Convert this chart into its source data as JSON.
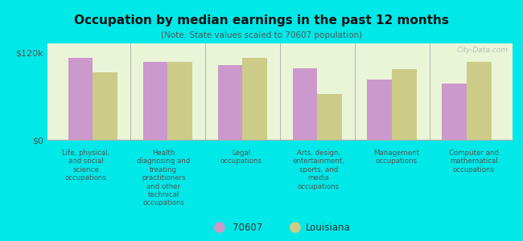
{
  "title": "Occupation by median earnings in the past 12 months",
  "subtitle": "(Note: State values scaled to 70607 population)",
  "categories": [
    "Life, physical,\nand social\nscience\noccupations",
    "Health\ndiagnosing and\ntreating\npractitioners\nand other\ntechnical\noccupations",
    "Legal\noccupations",
    "Arts, design,\nentertainment,\nsports, and\nmedia\noccupations",
    "Management\noccupations",
    "Computer and\nmathematical\noccupations"
  ],
  "values_70607": [
    113000,
    108000,
    103000,
    99000,
    83000,
    78000
  ],
  "values_louisiana": [
    93000,
    108000,
    113000,
    63000,
    98000,
    108000
  ],
  "color_70607": "#cc99cc",
  "color_louisiana": "#cccc88",
  "background_plot": "#eaf5d8",
  "background_fig": "#00e8e8",
  "yticks": [
    0,
    120000
  ],
  "ytick_labels": [
    "$0",
    "$120k"
  ],
  "ylim": [
    0,
    133000
  ],
  "legend_labels": [
    "70607",
    "Louisiana"
  ],
  "watermark": "City-Data.com"
}
